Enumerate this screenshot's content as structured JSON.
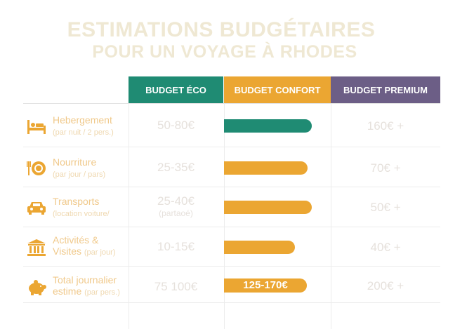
{
  "title": {
    "line1": "ESTIMATIONS BUDGÉTAIRES",
    "line2": "POUR UN VOYAGE À RHODES"
  },
  "columns": {
    "eco": "BUDGET ÉCO",
    "confort": "BUDGET CONFORT",
    "premium": "BUDGET PREMIUM"
  },
  "colors": {
    "eco": "#1f8b73",
    "confort": "#eba632",
    "premium": "#6c5e86",
    "label": "#f0c98b"
  },
  "rows": [
    {
      "icon": "bed-icon",
      "label": "Hebergement",
      "sub": "(par nuit / 2 pers.)",
      "eco": "50-80€",
      "eco_sub": "",
      "confort_label": "",
      "confort_share": 1.0,
      "premium": "160€ +"
    },
    {
      "icon": "plate-icon",
      "label": "Nourriture",
      "sub": "(par jour / pars)",
      "eco": "25-35€",
      "eco_sub": "",
      "confort_label": "",
      "confort_share": 0.95,
      "premium": "70€ +"
    },
    {
      "icon": "car-icon",
      "label": "Transports",
      "sub": "(location voiture/",
      "eco": "25-40€",
      "eco_sub": "(partaoé)",
      "confort_label": "",
      "confort_share": 1.0,
      "premium": "50€ +"
    },
    {
      "icon": "museum-icon",
      "label": "Activités &",
      "label2": "Visites",
      "sub": "(par jour)",
      "eco": "10-15€",
      "eco_sub": "",
      "confort_label": "",
      "confort_share": 0.81,
      "premium": "40€ +"
    },
    {
      "icon": "piggy-bank-icon",
      "label": "Total journalier",
      "label2": "estime",
      "sub": "(par pers.)",
      "eco": "75  100€",
      "eco_sub": "",
      "confort_label": "125-170€",
      "confort_share": 0.94,
      "premium": "200€ +"
    }
  ]
}
